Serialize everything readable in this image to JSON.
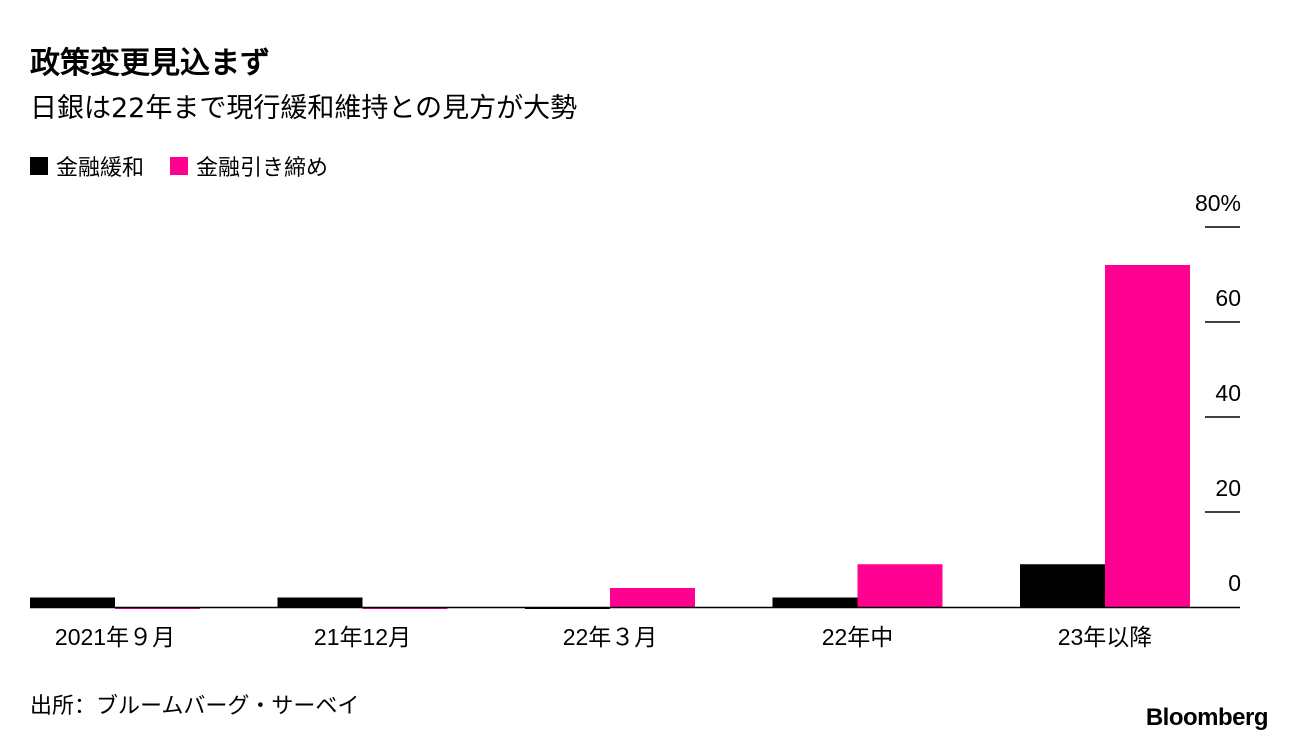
{
  "chart_data": {
    "type": "bar",
    "title": "政策変更見込まず",
    "subtitle": "日銀は22年まで現行緩和維持との見方が大勢",
    "categories": [
      "2021年９月",
      "21年12月",
      "22年３月",
      "22年中",
      "23年以降"
    ],
    "series": [
      {
        "name": "金融緩和",
        "color": "#000000",
        "values": [
          2,
          2,
          0,
          2,
          9
        ]
      },
      {
        "name": "金融引き締め",
        "color": "#ff0090",
        "values": [
          0,
          0,
          4,
          9,
          72
        ]
      }
    ],
    "ylim": [
      0,
      80
    ],
    "yticks": [
      0,
      20,
      40,
      60,
      80
    ],
    "ytick_labels": [
      "0",
      "20",
      "40",
      "60",
      "80%"
    ],
    "y_axis_side": "right",
    "grid": false,
    "legend_position": "top-left",
    "source": "出所：ブルームバーグ・サーベイ",
    "logo": "Bloomberg"
  }
}
